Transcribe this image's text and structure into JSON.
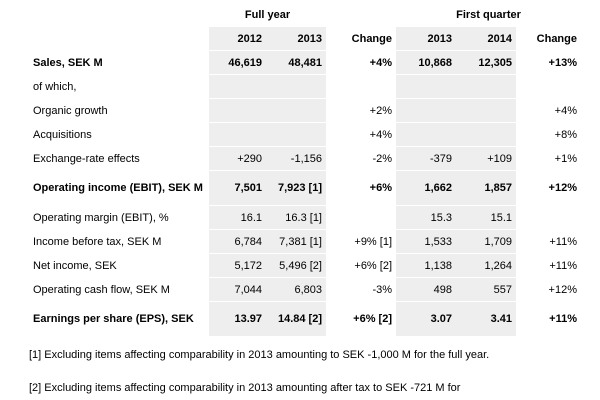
{
  "groups": {
    "full_year": "Full year",
    "first_quarter": "First quarter"
  },
  "header": {
    "fy1": "2012",
    "fy2": "2013",
    "ch1": "Change",
    "q1": "2013",
    "q2": "2014",
    "ch2": "Change"
  },
  "rows": [
    {
      "label": "Sales, SEK M",
      "fy1": "46,619",
      "fy2": "48,481",
      "ch1": "+4%",
      "q1": "10,868",
      "q2": "12,305",
      "ch2": "+13%"
    },
    {
      "label": "of which,",
      "fy1": "",
      "fy2": "",
      "ch1": "",
      "q1": "",
      "q2": "",
      "ch2": ""
    },
    {
      "label": "Organic growth",
      "fy1": "",
      "fy2": "",
      "ch1": "+2%",
      "q1": "",
      "q2": "",
      "ch2": "+4%"
    },
    {
      "label": "Acquisitions",
      "fy1": "",
      "fy2": "",
      "ch1": "+4%",
      "q1": "",
      "q2": "",
      "ch2": "+8%"
    },
    {
      "label": "Exchange-rate effects",
      "fy1": "+290",
      "fy2": "-1,156",
      "ch1": "-2%",
      "q1": "-379",
      "q2": "+109",
      "ch2": "+1%"
    },
    {
      "label": "Operating income (EBIT), SEK M",
      "fy1": "7,501",
      "fy2": "7,923 [1]",
      "ch1": "+6%",
      "q1": "1,662",
      "q2": "1,857",
      "ch2": "+12%"
    },
    {
      "label": "Operating margin (EBIT), %",
      "fy1": "16.1",
      "fy2": "16.3 [1]",
      "ch1": "",
      "q1": "15.3",
      "q2": "15.1",
      "ch2": ""
    },
    {
      "label": "Income before tax, SEK M",
      "fy1": "6,784",
      "fy2": "7,381 [1]",
      "ch1": "+9% [1]",
      "q1": "1,533",
      "q2": "1,709",
      "ch2": "+11%"
    },
    {
      "label": "Net income, SEK",
      "fy1": "5,172",
      "fy2": "5,496 [2]",
      "ch1": "+6% [2]",
      "q1": "1,138",
      "q2": "1,264",
      "ch2": "+11%"
    },
    {
      "label": "Operating cash flow, SEK M",
      "fy1": "7,044",
      "fy2": "6,803",
      "ch1": "-3%",
      "q1": "498",
      "q2": "557",
      "ch2": "+12%"
    },
    {
      "label": "Earnings per share (EPS), SEK",
      "fy1": "13.97",
      "fy2": "14.84 [2]",
      "ch1": "+6% [2]",
      "q1": "3.07",
      "q2": "3.41",
      "ch2": "+11%"
    }
  ],
  "footnotes": [
    "[1] Excluding items affecting comparability in 2013 amounting to SEK -1,000 M for the full year.",
    "[2] Excluding items affecting comparability in 2013 amounting after tax to SEK -721 M for"
  ]
}
